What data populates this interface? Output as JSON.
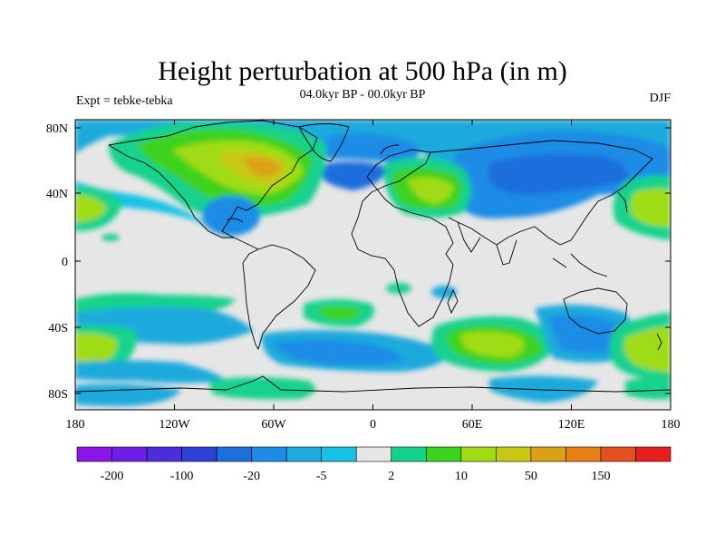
{
  "title": "Height perturbation at 500 hPa (in m)",
  "experiment": "Expt = tebke-tebka",
  "period": "04.0kyr BP - 00.0kyr BP",
  "season": "DJF",
  "lat_labels": [
    "80N",
    "40N",
    "0",
    "40S",
    "80S"
  ],
  "lon_labels": [
    "180",
    "120W",
    "60W",
    "0",
    "60E",
    "120E",
    "180"
  ],
  "colorbar": {
    "colors": [
      "#8c14e6",
      "#6e1ee6",
      "#4b2ddc",
      "#2d41d7",
      "#1e6edc",
      "#1e8ce6",
      "#1eaadc",
      "#14c3e6",
      "#e6e6e6",
      "#14d28c",
      "#3cd21e",
      "#a0dc14",
      "#c8c814",
      "#dca014",
      "#e68214",
      "#e6501e",
      "#e61e1e"
    ],
    "labels": [
      "-200",
      "-100",
      "-20",
      "-5",
      "2",
      "10",
      "50",
      "150"
    ]
  },
  "regions": [
    {
      "name": "n-america-high",
      "color": "#3cd21e"
    },
    {
      "name": "canada-core",
      "color": "#c8c814"
    },
    {
      "name": "europe-high",
      "color": "#3cd21e"
    },
    {
      "name": "siberia-low",
      "color": "#1e8ce6"
    },
    {
      "name": "pacific-high",
      "color": "#a0dc14"
    },
    {
      "name": "south-indian-high",
      "color": "#a0dc14"
    }
  ]
}
